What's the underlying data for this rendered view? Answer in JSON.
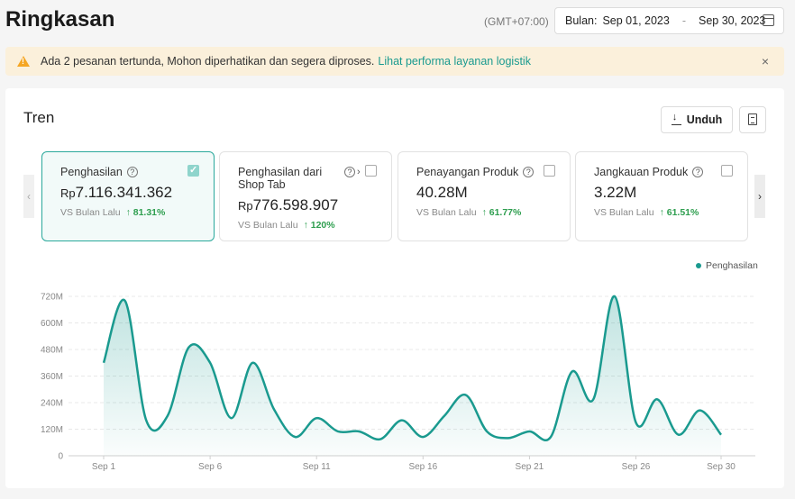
{
  "header": {
    "title": "Ringkasan",
    "timezone": "(GMT+07:00)",
    "date_label": "Bulan:",
    "date_start": "Sep 01, 2023",
    "date_sep": "-",
    "date_end": "Sep 30, 2023"
  },
  "notice": {
    "text": "Ada 2 pesanan tertunda, Mohon diperhatikan dan segera diproses.",
    "link": "Lihat performa layanan logistik",
    "close": "×"
  },
  "panel": {
    "title": "Tren",
    "download_label": "Unduh"
  },
  "cards": [
    {
      "name": "Penghasilan",
      "currency": "Rp",
      "value": "7.116.341.362",
      "compare": "VS Bulan Lalu",
      "change": "81.31%",
      "checked": true
    },
    {
      "name": "Penghasilan dari Shop Tab",
      "currency": "Rp",
      "value": "776.598.907",
      "compare": "VS Bulan Lalu",
      "change": "120%",
      "checked": false
    },
    {
      "name": "Penayangan Produk",
      "currency": "",
      "value": "40.28M",
      "compare": "VS Bulan Lalu",
      "change": "61.77%",
      "checked": false
    },
    {
      "name": "Jangkauan Produk",
      "currency": "",
      "value": "3.22M",
      "compare": "VS Bulan Lalu",
      "change": "61.51%",
      "checked": false
    }
  ],
  "colors": {
    "accent": "#1a9a8f",
    "positive": "#2e9e4f",
    "notice_bg": "#fbf0db",
    "warning": "#f5a623"
  },
  "chart_data": {
    "type": "area",
    "x": [
      1,
      2,
      3,
      4,
      5,
      6,
      7,
      8,
      9,
      10,
      11,
      12,
      13,
      14,
      15,
      16,
      17,
      18,
      19,
      20,
      21,
      22,
      23,
      24,
      25,
      26,
      27,
      28,
      29,
      30
    ],
    "x_tick_labels": [
      "Sep 1",
      "Sep 6",
      "Sep 11",
      "Sep 16",
      "Sep 21",
      "Sep 26",
      "Sep 30"
    ],
    "x_tick_positions": [
      1,
      6,
      11,
      16,
      21,
      26,
      30
    ],
    "y_tick_labels": [
      "0",
      "120M",
      "240M",
      "360M",
      "480M",
      "600M",
      "720M"
    ],
    "y_ticks": [
      0,
      120,
      240,
      360,
      480,
      600,
      720
    ],
    "ylim": [
      0,
      720
    ],
    "grid": true,
    "legend_position": "top-right",
    "series": [
      {
        "name": "Penghasilan",
        "values": [
          420,
          700,
          160,
          180,
          490,
          420,
          170,
          420,
          210,
          85,
          170,
          110,
          110,
          75,
          160,
          85,
          180,
          275,
          110,
          80,
          110,
          85,
          380,
          255,
          720,
          150,
          255,
          95,
          205,
          95
        ]
      }
    ]
  }
}
